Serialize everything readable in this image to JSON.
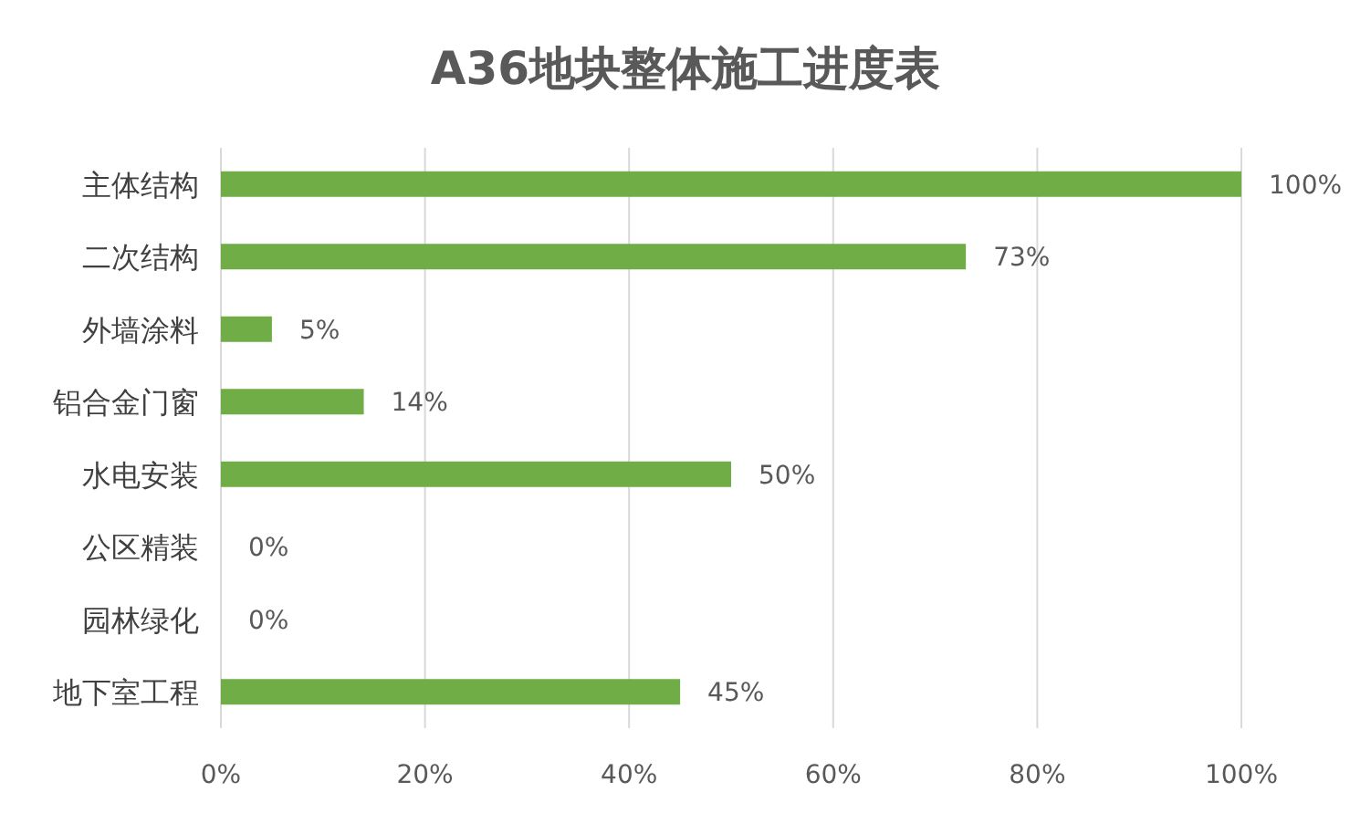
{
  "chart_data": {
    "type": "bar",
    "orientation": "horizontal",
    "title": "A36地块整体施工进度表",
    "categories": [
      "主体结构",
      "二次结构",
      "外墙涂料",
      "铝合金门窗",
      "水电安装",
      "公区精装",
      "园林绿化",
      "地下室工程"
    ],
    "values": [
      100,
      73,
      5,
      14,
      50,
      0,
      0,
      45
    ],
    "value_labels": [
      "100%",
      "73%",
      "5%",
      "14%",
      "50%",
      "0%",
      "0%",
      "45%"
    ],
    "color": "#70ad47",
    "xlim": [
      0,
      100
    ],
    "xticks": [
      {
        "value": 0,
        "label": "0%"
      },
      {
        "value": 20,
        "label": "20%"
      },
      {
        "value": 40,
        "label": "40%"
      },
      {
        "value": 60,
        "label": "60%"
      },
      {
        "value": 80,
        "label": "80%"
      },
      {
        "value": 100,
        "label": "100%"
      }
    ],
    "grid": "x"
  }
}
